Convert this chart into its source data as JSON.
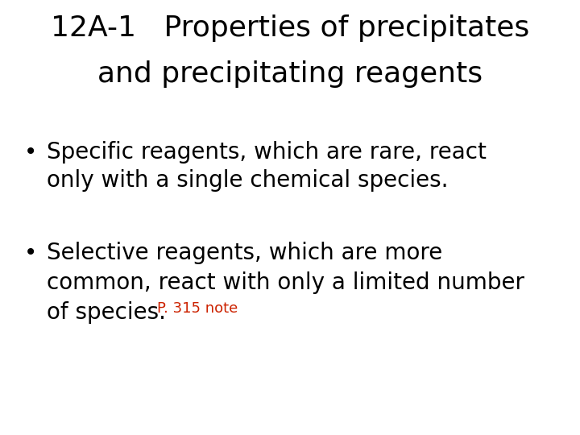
{
  "background_color": "#ffffff",
  "title_line1": "12A-1   Properties of precipitates",
  "title_line2": "and precipitating reagents",
  "title_fontsize": 26,
  "title_color": "#000000",
  "bullet1_line1": "Specific reagents, which are rare, react",
  "bullet1_line2": "only with a single chemical species.",
  "bullet2_line1": "Selective reagents, which are more",
  "bullet2_line2": "common, react with only a limited number",
  "bullet2_line3": "of species.",
  "note_text": "P. 315 note",
  "note_color": "#cc2200",
  "body_fontsize": 20,
  "note_fontsize": 13,
  "body_color": "#000000",
  "bullet_char": "•",
  "figwidth": 7.2,
  "figheight": 5.4,
  "dpi": 100
}
